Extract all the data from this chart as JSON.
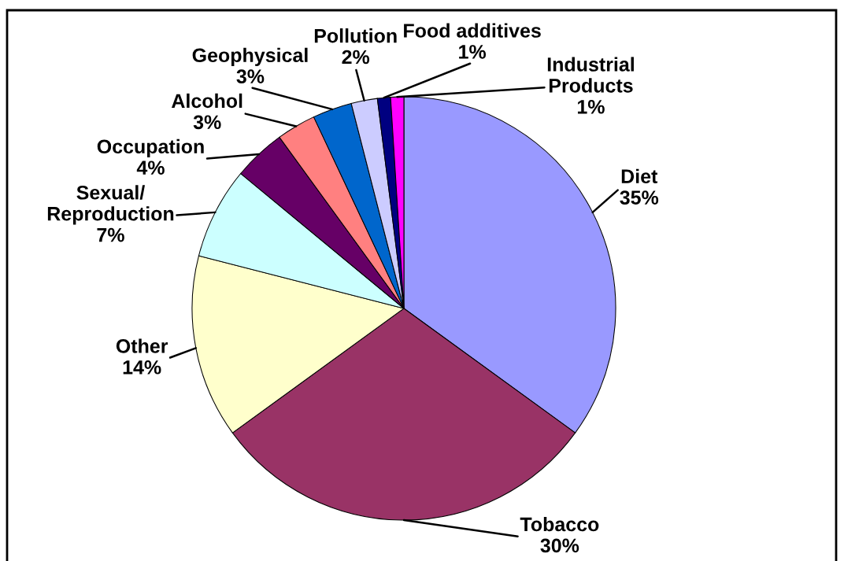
{
  "chart_data": {
    "type": "pie",
    "categories": [
      "Diet",
      "Tobacco",
      "Other",
      "Sexual/Reproduction",
      "Occupation",
      "Alcohol",
      "Geophysical",
      "Pollution",
      "Food additives",
      "Industrial Products"
    ],
    "values": [
      35,
      30,
      14,
      7,
      4,
      3,
      3,
      2,
      1,
      1
    ],
    "value_labels": [
      "35%",
      "30%",
      "14%",
      "7%",
      "4%",
      "3%",
      "3%",
      "2%",
      "1%",
      "1%"
    ],
    "colors": [
      "#9999ff",
      "#993366",
      "#ffffcc",
      "#ccffff",
      "#660066",
      "#ff8080",
      "#0066cc",
      "#ccccff",
      "#000080",
      "#ff00ff"
    ]
  }
}
